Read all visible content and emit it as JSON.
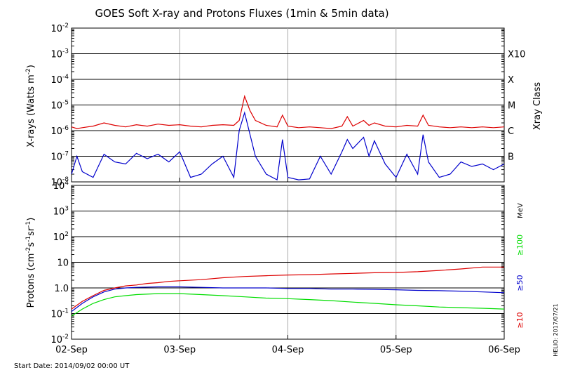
{
  "title": "GOES Soft X-ray and Protons Fluxes   (1min & 5min data)",
  "start_date": "Start Date: 2014/09/02 00:00 UT",
  "credit": "HELIO: 2017/07/21",
  "chart_data": [
    {
      "type": "line",
      "name": "xray-panel",
      "ylabel_main": "X-rays (Watts m",
      "ylabel_sup": "-2",
      "ylabel_close": ")",
      "yscale": "log",
      "ylim": [
        1e-08,
        0.01
      ],
      "ytick_exponents": [
        "-2",
        "-3",
        "-4",
        "-5",
        "-6",
        "-7",
        "-8"
      ],
      "right_label": "Xray Class",
      "classes": [
        {
          "label": "X10",
          "value": 0.001
        },
        {
          "label": "X",
          "value": 0.0001
        },
        {
          "label": "M",
          "value": 1e-05
        },
        {
          "label": "C",
          "value": 1e-06
        },
        {
          "label": "B",
          "value": 1e-07
        }
      ],
      "series": [
        {
          "color": "#dd0000",
          "points": [
            [
              0,
              1.4e-06
            ],
            [
              0.05,
              1.2e-06
            ],
            [
              0.1,
              1.3e-06
            ],
            [
              0.2,
              1.5e-06
            ],
            [
              0.3,
              2e-06
            ],
            [
              0.4,
              1.6e-06
            ],
            [
              0.5,
              1.4e-06
            ],
            [
              0.6,
              1.7e-06
            ],
            [
              0.7,
              1.5e-06
            ],
            [
              0.8,
              1.8e-06
            ],
            [
              0.9,
              1.6e-06
            ],
            [
              1.0,
              1.7e-06
            ],
            [
              1.1,
              1.5e-06
            ],
            [
              1.2,
              1.4e-06
            ],
            [
              1.3,
              1.6e-06
            ],
            [
              1.4,
              1.7e-06
            ],
            [
              1.5,
              1.6e-06
            ],
            [
              1.55,
              2.5e-06
            ],
            [
              1.6,
              2.2e-05
            ],
            [
              1.65,
              6e-06
            ],
            [
              1.7,
              2.5e-06
            ],
            [
              1.8,
              1.6e-06
            ],
            [
              1.9,
              1.4e-06
            ],
            [
              1.95,
              4e-06
            ],
            [
              2.0,
              1.5e-06
            ],
            [
              2.1,
              1.3e-06
            ],
            [
              2.2,
              1.4e-06
            ],
            [
              2.3,
              1.3e-06
            ],
            [
              2.4,
              1.2e-06
            ],
            [
              2.5,
              1.5e-06
            ],
            [
              2.55,
              3.5e-06
            ],
            [
              2.6,
              1.5e-06
            ],
            [
              2.7,
              2.5e-06
            ],
            [
              2.75,
              1.6e-06
            ],
            [
              2.8,
              2e-06
            ],
            [
              2.9,
              1.5e-06
            ],
            [
              3.0,
              1.4e-06
            ],
            [
              3.1,
              1.6e-06
            ],
            [
              3.2,
              1.5e-06
            ],
            [
              3.25,
              4e-06
            ],
            [
              3.3,
              1.6e-06
            ],
            [
              3.4,
              1.4e-06
            ],
            [
              3.5,
              1.3e-06
            ],
            [
              3.6,
              1.4e-06
            ],
            [
              3.7,
              1.3e-06
            ],
            [
              3.8,
              1.4e-06
            ],
            [
              3.9,
              1.3e-06
            ],
            [
              4.0,
              1.4e-06
            ]
          ]
        },
        {
          "color": "#0000cc",
          "points": [
            [
              0,
              2e-08
            ],
            [
              0.05,
              1e-07
            ],
            [
              0.1,
              2.5e-08
            ],
            [
              0.2,
              1.5e-08
            ],
            [
              0.3,
              1.2e-07
            ],
            [
              0.4,
              6e-08
            ],
            [
              0.5,
              5e-08
            ],
            [
              0.6,
              1.3e-07
            ],
            [
              0.7,
              8e-08
            ],
            [
              0.8,
              1.2e-07
            ],
            [
              0.9,
              6e-08
            ],
            [
              1.0,
              1.5e-07
            ],
            [
              1.1,
              1.5e-08
            ],
            [
              1.2,
              2e-08
            ],
            [
              1.3,
              5e-08
            ],
            [
              1.4,
              1e-07
            ],
            [
              1.5,
              1.5e-08
            ],
            [
              1.55,
              1e-06
            ],
            [
              1.6,
              5e-06
            ],
            [
              1.7,
              1e-07
            ],
            [
              1.8,
              2e-08
            ],
            [
              1.9,
              1.2e-08
            ],
            [
              1.95,
              4.5e-07
            ],
            [
              2.0,
              1.5e-08
            ],
            [
              2.1,
              1.2e-08
            ],
            [
              2.2,
              1.3e-08
            ],
            [
              2.3,
              1e-07
            ],
            [
              2.4,
              2e-08
            ],
            [
              2.5,
              1.5e-07
            ],
            [
              2.55,
              4.5e-07
            ],
            [
              2.6,
              2e-07
            ],
            [
              2.7,
              5.5e-07
            ],
            [
              2.75,
              1e-07
            ],
            [
              2.8,
              4e-07
            ],
            [
              2.9,
              5e-08
            ],
            [
              3.0,
              1.5e-08
            ],
            [
              3.1,
              1.2e-07
            ],
            [
              3.2,
              2e-08
            ],
            [
              3.25,
              7e-07
            ],
            [
              3.3,
              6e-08
            ],
            [
              3.4,
              1.5e-08
            ],
            [
              3.5,
              2e-08
            ],
            [
              3.6,
              6e-08
            ],
            [
              3.7,
              4e-08
            ],
            [
              3.8,
              5e-08
            ],
            [
              3.9,
              3e-08
            ],
            [
              4.0,
              5e-08
            ]
          ]
        }
      ]
    },
    {
      "type": "line",
      "name": "proton-panel",
      "ylabel_main": "Protons (cm",
      "ylabel_sup1": "-2",
      "ylabel_mid": "s",
      "ylabel_sup2": "-1",
      "ylabel_mid2": "sr",
      "ylabel_sup3": "-1",
      "ylabel_close": ")",
      "yscale": "log",
      "ylim": [
        0.01,
        10000
      ],
      "ytick_exponents": [
        "4",
        "3",
        "2",
        "1",
        "0",
        "-1",
        "-2"
      ],
      "ytick_special": {
        "1": "10",
        "0": "1.0"
      },
      "threshold": 10,
      "right_unit": "MeV",
      "series": [
        {
          "label": "≥10",
          "color": "#dd0000",
          "points": [
            [
              0,
              0.15
            ],
            [
              0.1,
              0.3
            ],
            [
              0.2,
              0.5
            ],
            [
              0.3,
              0.8
            ],
            [
              0.4,
              1.0
            ],
            [
              0.5,
              1.2
            ],
            [
              0.6,
              1.3
            ],
            [
              0.7,
              1.5
            ],
            [
              0.8,
              1.6
            ],
            [
              0.9,
              1.8
            ],
            [
              1.0,
              1.9
            ],
            [
              1.2,
              2.1
            ],
            [
              1.4,
              2.5
            ],
            [
              1.6,
              2.8
            ],
            [
              1.8,
              3.0
            ],
            [
              2.0,
              3.2
            ],
            [
              2.2,
              3.3
            ],
            [
              2.4,
              3.5
            ],
            [
              2.6,
              3.7
            ],
            [
              2.8,
              3.9
            ],
            [
              3.0,
              4.0
            ],
            [
              3.2,
              4.3
            ],
            [
              3.4,
              4.8
            ],
            [
              3.6,
              5.5
            ],
            [
              3.8,
              6.5
            ],
            [
              4.0,
              6.5
            ]
          ]
        },
        {
          "label": "≥50",
          "color": "#0000cc",
          "points": [
            [
              0,
              0.12
            ],
            [
              0.1,
              0.25
            ],
            [
              0.2,
              0.45
            ],
            [
              0.3,
              0.7
            ],
            [
              0.4,
              0.9
            ],
            [
              0.5,
              1.0
            ],
            [
              0.6,
              1.05
            ],
            [
              0.8,
              1.1
            ],
            [
              1.0,
              1.1
            ],
            [
              1.2,
              1.05
            ],
            [
              1.4,
              1.0
            ],
            [
              1.6,
              1.0
            ],
            [
              1.8,
              1.0
            ],
            [
              2.0,
              0.95
            ],
            [
              2.2,
              0.95
            ],
            [
              2.4,
              0.9
            ],
            [
              2.6,
              0.9
            ],
            [
              2.8,
              0.88
            ],
            [
              3.0,
              0.85
            ],
            [
              3.2,
              0.8
            ],
            [
              3.4,
              0.78
            ],
            [
              3.6,
              0.75
            ],
            [
              3.8,
              0.7
            ],
            [
              4.0,
              0.65
            ]
          ]
        },
        {
          "label": "≥100",
          "color": "#00dd00",
          "points": [
            [
              0,
              0.08
            ],
            [
              0.1,
              0.15
            ],
            [
              0.2,
              0.25
            ],
            [
              0.3,
              0.35
            ],
            [
              0.4,
              0.45
            ],
            [
              0.5,
              0.5
            ],
            [
              0.6,
              0.55
            ],
            [
              0.8,
              0.6
            ],
            [
              1.0,
              0.6
            ],
            [
              1.2,
              0.55
            ],
            [
              1.4,
              0.5
            ],
            [
              1.6,
              0.45
            ],
            [
              1.8,
              0.4
            ],
            [
              2.0,
              0.38
            ],
            [
              2.2,
              0.35
            ],
            [
              2.4,
              0.32
            ],
            [
              2.6,
              0.28
            ],
            [
              2.8,
              0.25
            ],
            [
              3.0,
              0.22
            ],
            [
              3.2,
              0.2
            ],
            [
              3.4,
              0.18
            ],
            [
              3.6,
              0.17
            ],
            [
              3.8,
              0.16
            ],
            [
              4.0,
              0.15
            ]
          ]
        }
      ]
    }
  ],
  "x_axis": {
    "categories": [
      "02-Sep",
      "03-Sep",
      "04-Sep",
      "05-Sep",
      "06-Sep"
    ],
    "xlim": [
      0,
      4
    ]
  }
}
